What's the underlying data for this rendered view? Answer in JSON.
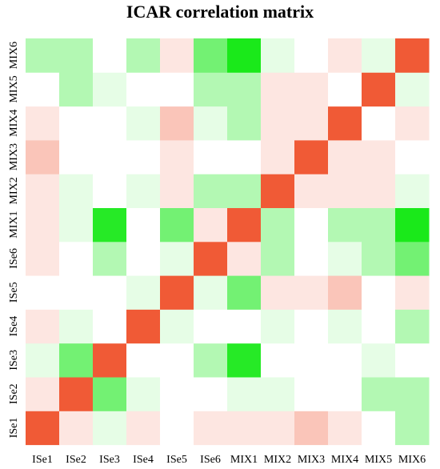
{
  "chart_data": {
    "type": "heatmap",
    "title": "ICAR correlation matrix",
    "xlabel": "",
    "ylabel": "",
    "x_categories": [
      "ISe1",
      "ISe2",
      "ISe3",
      "ISe4",
      "ISe5",
      "ISe6",
      "MIX1",
      "MIX2",
      "MIX3",
      "MIX4",
      "MIX5",
      "MIX6"
    ],
    "y_categories": [
      "ISe1",
      "ISe2",
      "ISe3",
      "ISe4",
      "ISe5",
      "ISe6",
      "MIX1",
      "MIX2",
      "MIX3",
      "MIX4",
      "MIX5",
      "MIX6"
    ],
    "value_range": [
      -1,
      1
    ],
    "colors": {
      "positive": "#f05a36",
      "negative": "#00e600",
      "zero": "#ffffff"
    },
    "matrix": [
      [
        1.0,
        0.15,
        -0.1,
        0.15,
        0,
        0.15,
        0.15,
        0.15,
        0.35,
        0.15,
        0,
        -0.3
      ],
      [
        0.15,
        1.0,
        -0.55,
        -0.1,
        0,
        0,
        -0.1,
        -0.1,
        0,
        0,
        -0.3,
        -0.3
      ],
      [
        -0.1,
        -0.55,
        1.0,
        0,
        0,
        -0.3,
        -0.85,
        0,
        0,
        0,
        -0.1,
        0
      ],
      [
        0.15,
        -0.1,
        0,
        1.0,
        -0.1,
        0,
        0,
        -0.1,
        0,
        -0.1,
        0,
        -0.3
      ],
      [
        0,
        0,
        0,
        -0.1,
        1.0,
        -0.1,
        -0.55,
        0.15,
        0.15,
        0.35,
        0,
        0.15
      ],
      [
        0.15,
        0,
        -0.3,
        0,
        -0.1,
        1.0,
        0.15,
        -0.3,
        0,
        -0.1,
        -0.3,
        -0.55
      ],
      [
        0.15,
        -0.1,
        -0.85,
        0,
        -0.55,
        0.15,
        1.0,
        -0.3,
        0,
        -0.3,
        -0.3,
        -0.9
      ],
      [
        0.15,
        -0.1,
        0,
        -0.1,
        0.15,
        -0.3,
        -0.3,
        1.0,
        0.15,
        0.15,
        0.15,
        -0.1
      ],
      [
        0.35,
        0,
        0,
        0,
        0.15,
        0,
        0,
        0.15,
        1.0,
        0.15,
        0.15,
        0
      ],
      [
        0.15,
        0,
        0,
        -0.1,
        0.35,
        -0.1,
        -0.3,
        0.15,
        0.15,
        1.0,
        0,
        0.15
      ],
      [
        0,
        -0.3,
        -0.1,
        0,
        0,
        -0.3,
        -0.3,
        0.15,
        0.15,
        0,
        1.0,
        -0.1
      ],
      [
        -0.3,
        -0.3,
        0,
        -0.3,
        0.15,
        -0.55,
        -0.9,
        -0.1,
        0,
        0.15,
        -0.1,
        1.0
      ]
    ]
  }
}
